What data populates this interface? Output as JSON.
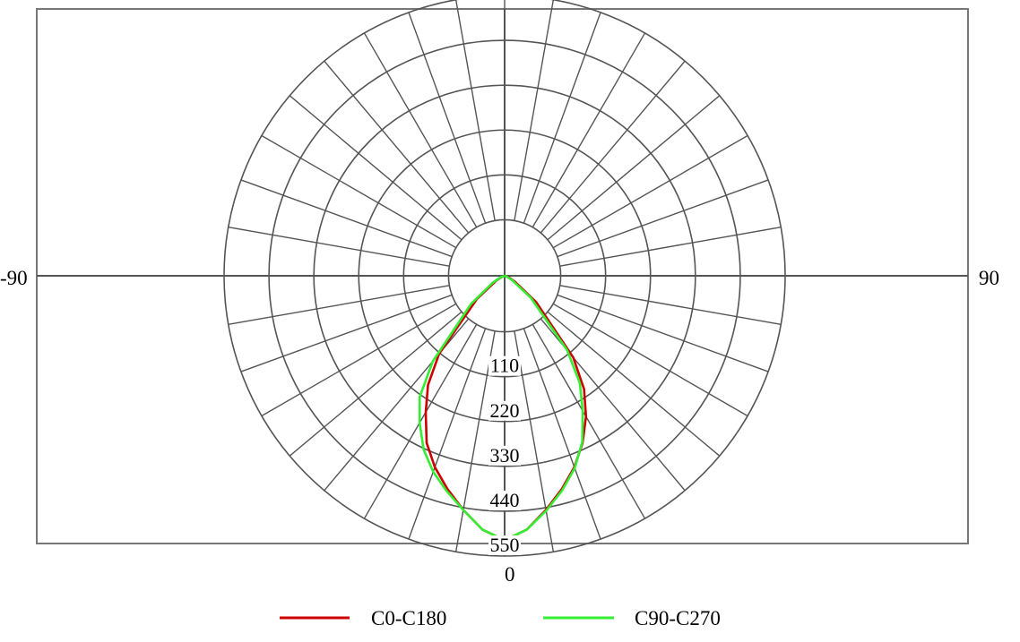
{
  "chart_data": {
    "type": "polar",
    "title": "",
    "angle_labels": {
      "left": "-90",
      "right": "90",
      "bottom": "0"
    },
    "angle_range": [
      -90,
      90
    ],
    "angle_step_deg": 10,
    "radial_ticks": [
      {
        "value": 110,
        "label": "110"
      },
      {
        "value": 220,
        "label": "220"
      },
      {
        "value": 330,
        "label": "330"
      },
      {
        "value": 440,
        "label": "440"
      },
      {
        "value": 550,
        "label": "550"
      }
    ],
    "radial_max": 550,
    "inner_hole_fraction": 0.2,
    "grid": true,
    "legend_position": "bottom",
    "series": [
      {
        "name": "C0-C180",
        "color": "#cc0000",
        "angles_deg": [
          -90,
          -80,
          -70,
          -60,
          -50,
          -40,
          -35,
          -30,
          -25,
          -20,
          -15,
          -10,
          -5,
          0,
          5,
          10,
          15,
          20,
          25,
          30,
          35,
          40,
          50,
          60,
          70,
          80,
          90
        ],
        "values": [
          0,
          0,
          5,
          20,
          75,
          210,
          275,
          325,
          380,
          420,
          455,
          490,
          525,
          545,
          525,
          490,
          455,
          420,
          380,
          335,
          285,
          220,
          85,
          25,
          8,
          0,
          0
        ]
      },
      {
        "name": "C90-C270",
        "color": "#33ee33",
        "angles_deg": [
          -90,
          -80,
          -70,
          -60,
          -50,
          -40,
          -35,
          -30,
          -25,
          -20,
          -15,
          -10,
          -5,
          0,
          5,
          10,
          15,
          20,
          25,
          30,
          35,
          40,
          50,
          60,
          70,
          80,
          90
        ],
        "values": [
          0,
          0,
          8,
          28,
          90,
          230,
          305,
          350,
          395,
          430,
          460,
          490,
          525,
          545,
          525,
          492,
          458,
          422,
          378,
          322,
          270,
          200,
          70,
          18,
          5,
          0,
          0
        ]
      }
    ]
  },
  "colors": {
    "grid": "#555555",
    "frame": "#777777",
    "background": "#ffffff"
  }
}
